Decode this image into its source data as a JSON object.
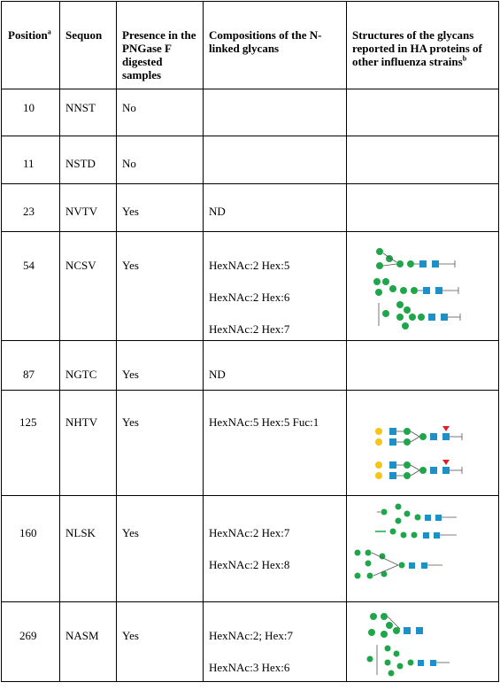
{
  "headers": {
    "position": "Position",
    "position_sup": "a",
    "sequon": "Sequon",
    "presence": "Presence in the PNGase F digested samples",
    "compositions": "Compositions of the N-linked glycans",
    "structures": "Structures of the glycans reported in HA proteins of other influenza strains",
    "structures_sup": "b"
  },
  "rows": [
    {
      "position": "10",
      "sequon": "NNST",
      "presence": "No",
      "compositions": []
    },
    {
      "position": "11",
      "sequon": "NSTD",
      "presence": "No",
      "compositions": []
    },
    {
      "position": "23",
      "sequon": "NVTV",
      "presence": "Yes",
      "compositions": [
        "ND"
      ]
    },
    {
      "position": "54",
      "sequon": "NCSV",
      "presence": "Yes",
      "compositions": [
        "HexNAc:2 Hex:5",
        "HexNAc:2 Hex:6",
        "HexNAc:2 Hex:7"
      ]
    },
    {
      "position": "87",
      "sequon": "NGTC",
      "presence": "Yes",
      "compositions": [
        "ND"
      ]
    },
    {
      "position": "125",
      "sequon": "NHTV",
      "presence": "Yes",
      "compositions": [
        "HexNAc:5 Hex:5 Fuc:1"
      ]
    },
    {
      "position": "160",
      "sequon": "NLSK",
      "presence": "Yes",
      "compositions": [
        "HexNAc:2 Hex:7",
        "HexNAc:2 Hex:8"
      ]
    },
    {
      "position": "269",
      "sequon": "NASM",
      "presence": "Yes",
      "compositions": [
        "HexNAc:2; Hex:7",
        "HexNAc:3 Hex:6"
      ]
    }
  ],
  "colors": {
    "mannose": "#1fa64a",
    "glcnac": "#1f8fc7",
    "galactose": "#f5c518",
    "fucose": "#e0202a"
  }
}
